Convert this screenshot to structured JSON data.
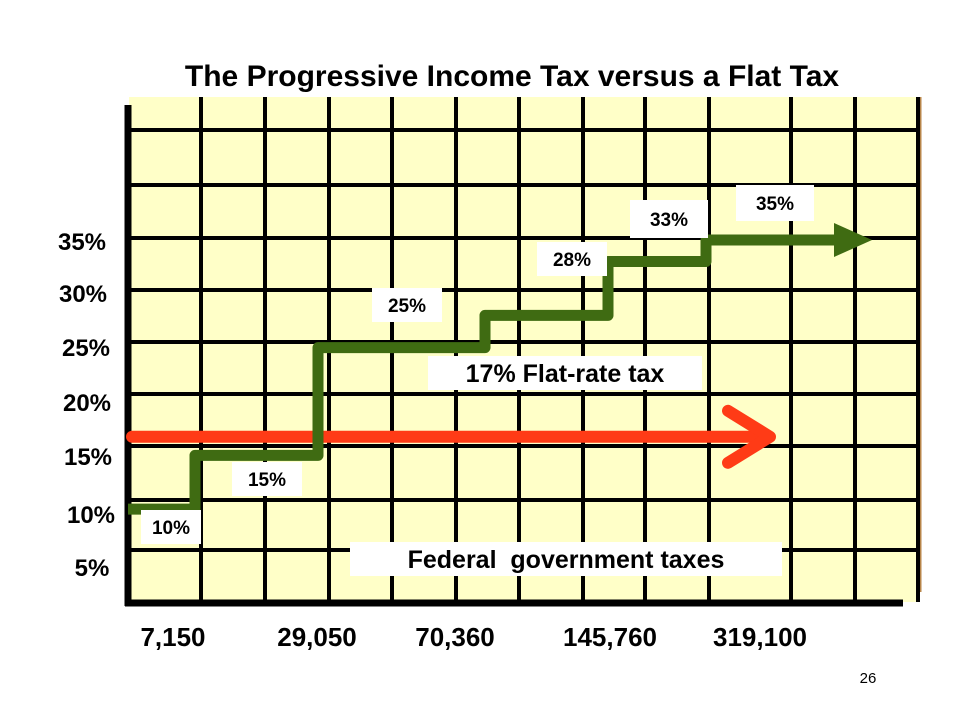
{
  "page_number": "26",
  "chart_data": {
    "type": "line",
    "title": "The Progressive Income Tax versus a Flat Tax",
    "y_tick_labels": [
      "5%",
      "10%",
      "15%",
      "20%",
      "25%",
      "30%",
      "35%"
    ],
    "x_tick_labels": [
      "7,150",
      "29,050",
      "70,360",
      "145,760",
      "319,100"
    ],
    "series": [
      {
        "kind": "progressive",
        "color": "#3f6b12",
        "steps": [
          {
            "rate": 10,
            "label": "10%"
          },
          {
            "rate": 15,
            "label": "15%"
          },
          {
            "rate": 25,
            "label": "25%"
          },
          {
            "rate": 28,
            "label": "28%"
          },
          {
            "rate": 33,
            "label": "33%"
          },
          {
            "rate": 35,
            "label": "35%"
          }
        ]
      },
      {
        "name": "17% Flat-rate tax",
        "kind": "flat",
        "color": "#ff3b16",
        "rate": 17
      }
    ],
    "annotation": "Federal  government taxes",
    "grid": true,
    "background": "#ffffc8"
  }
}
